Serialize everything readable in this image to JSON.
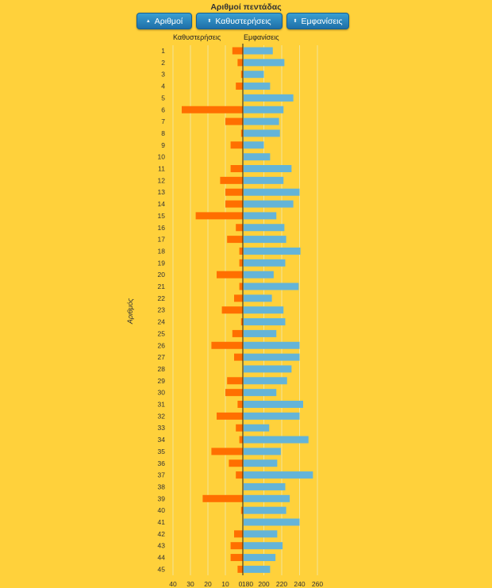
{
  "title": "Αριθμοί πεντάδας",
  "buttons": [
    {
      "label": "Αριθμοί",
      "icon": "triangle-up-icon"
    },
    {
      "label": "Καθυστερήσεις",
      "icon": "sort-icon"
    },
    {
      "label": "Εμφανίσεις",
      "icon": "sort-icon"
    }
  ],
  "colors": {
    "background": "#FFD13B",
    "delay_bar": "#FF6F00",
    "appearance_bar": "#64B4D8",
    "button": "#2A86C0"
  },
  "chart_data": {
    "type": "bar",
    "orientation": "horizontal",
    "ylabel": "Αριθμός",
    "grid": true,
    "categories": [
      "1",
      "2",
      "3",
      "4",
      "5",
      "6",
      "7",
      "8",
      "9",
      "10",
      "11",
      "12",
      "13",
      "14",
      "15",
      "16",
      "17",
      "18",
      "19",
      "20",
      "21",
      "22",
      "23",
      "24",
      "25",
      "26",
      "27",
      "28",
      "29",
      "30",
      "31",
      "32",
      "33",
      "34",
      "35",
      "36",
      "37",
      "38",
      "39",
      "40",
      "41",
      "42",
      "43",
      "44",
      "45"
    ],
    "series": [
      {
        "name": "Καθυστερήσεις",
        "side": "left",
        "xlim": [
          0,
          40
        ],
        "ticks": [
          "40",
          "30",
          "20",
          "10",
          "0"
        ],
        "values": [
          6,
          3,
          1,
          4,
          0,
          35,
          10,
          1,
          7,
          0,
          7,
          13,
          10,
          10,
          27,
          4,
          9,
          2,
          2,
          15,
          2,
          5,
          12,
          1,
          6,
          18,
          5,
          0,
          9,
          10,
          3,
          15,
          4,
          2,
          18,
          8,
          4,
          0,
          23,
          1,
          0,
          5,
          7,
          7,
          3
        ]
      },
      {
        "name": "Εμφανίσεις",
        "side": "right",
        "xlim": [
          180,
          265
        ],
        "ticks": [
          "180",
          "200",
          "220",
          "240",
          "260"
        ],
        "values": [
          210,
          223,
          200,
          207,
          233,
          222,
          217,
          218,
          200,
          207,
          231,
          222,
          240,
          233,
          214,
          223,
          225,
          241,
          224,
          211,
          239,
          209,
          222,
          224,
          214,
          240,
          240,
          231,
          226,
          214,
          244,
          240,
          206,
          250,
          219,
          215,
          255,
          224,
          229,
          225,
          240,
          215,
          221,
          213,
          207
        ]
      }
    ]
  }
}
